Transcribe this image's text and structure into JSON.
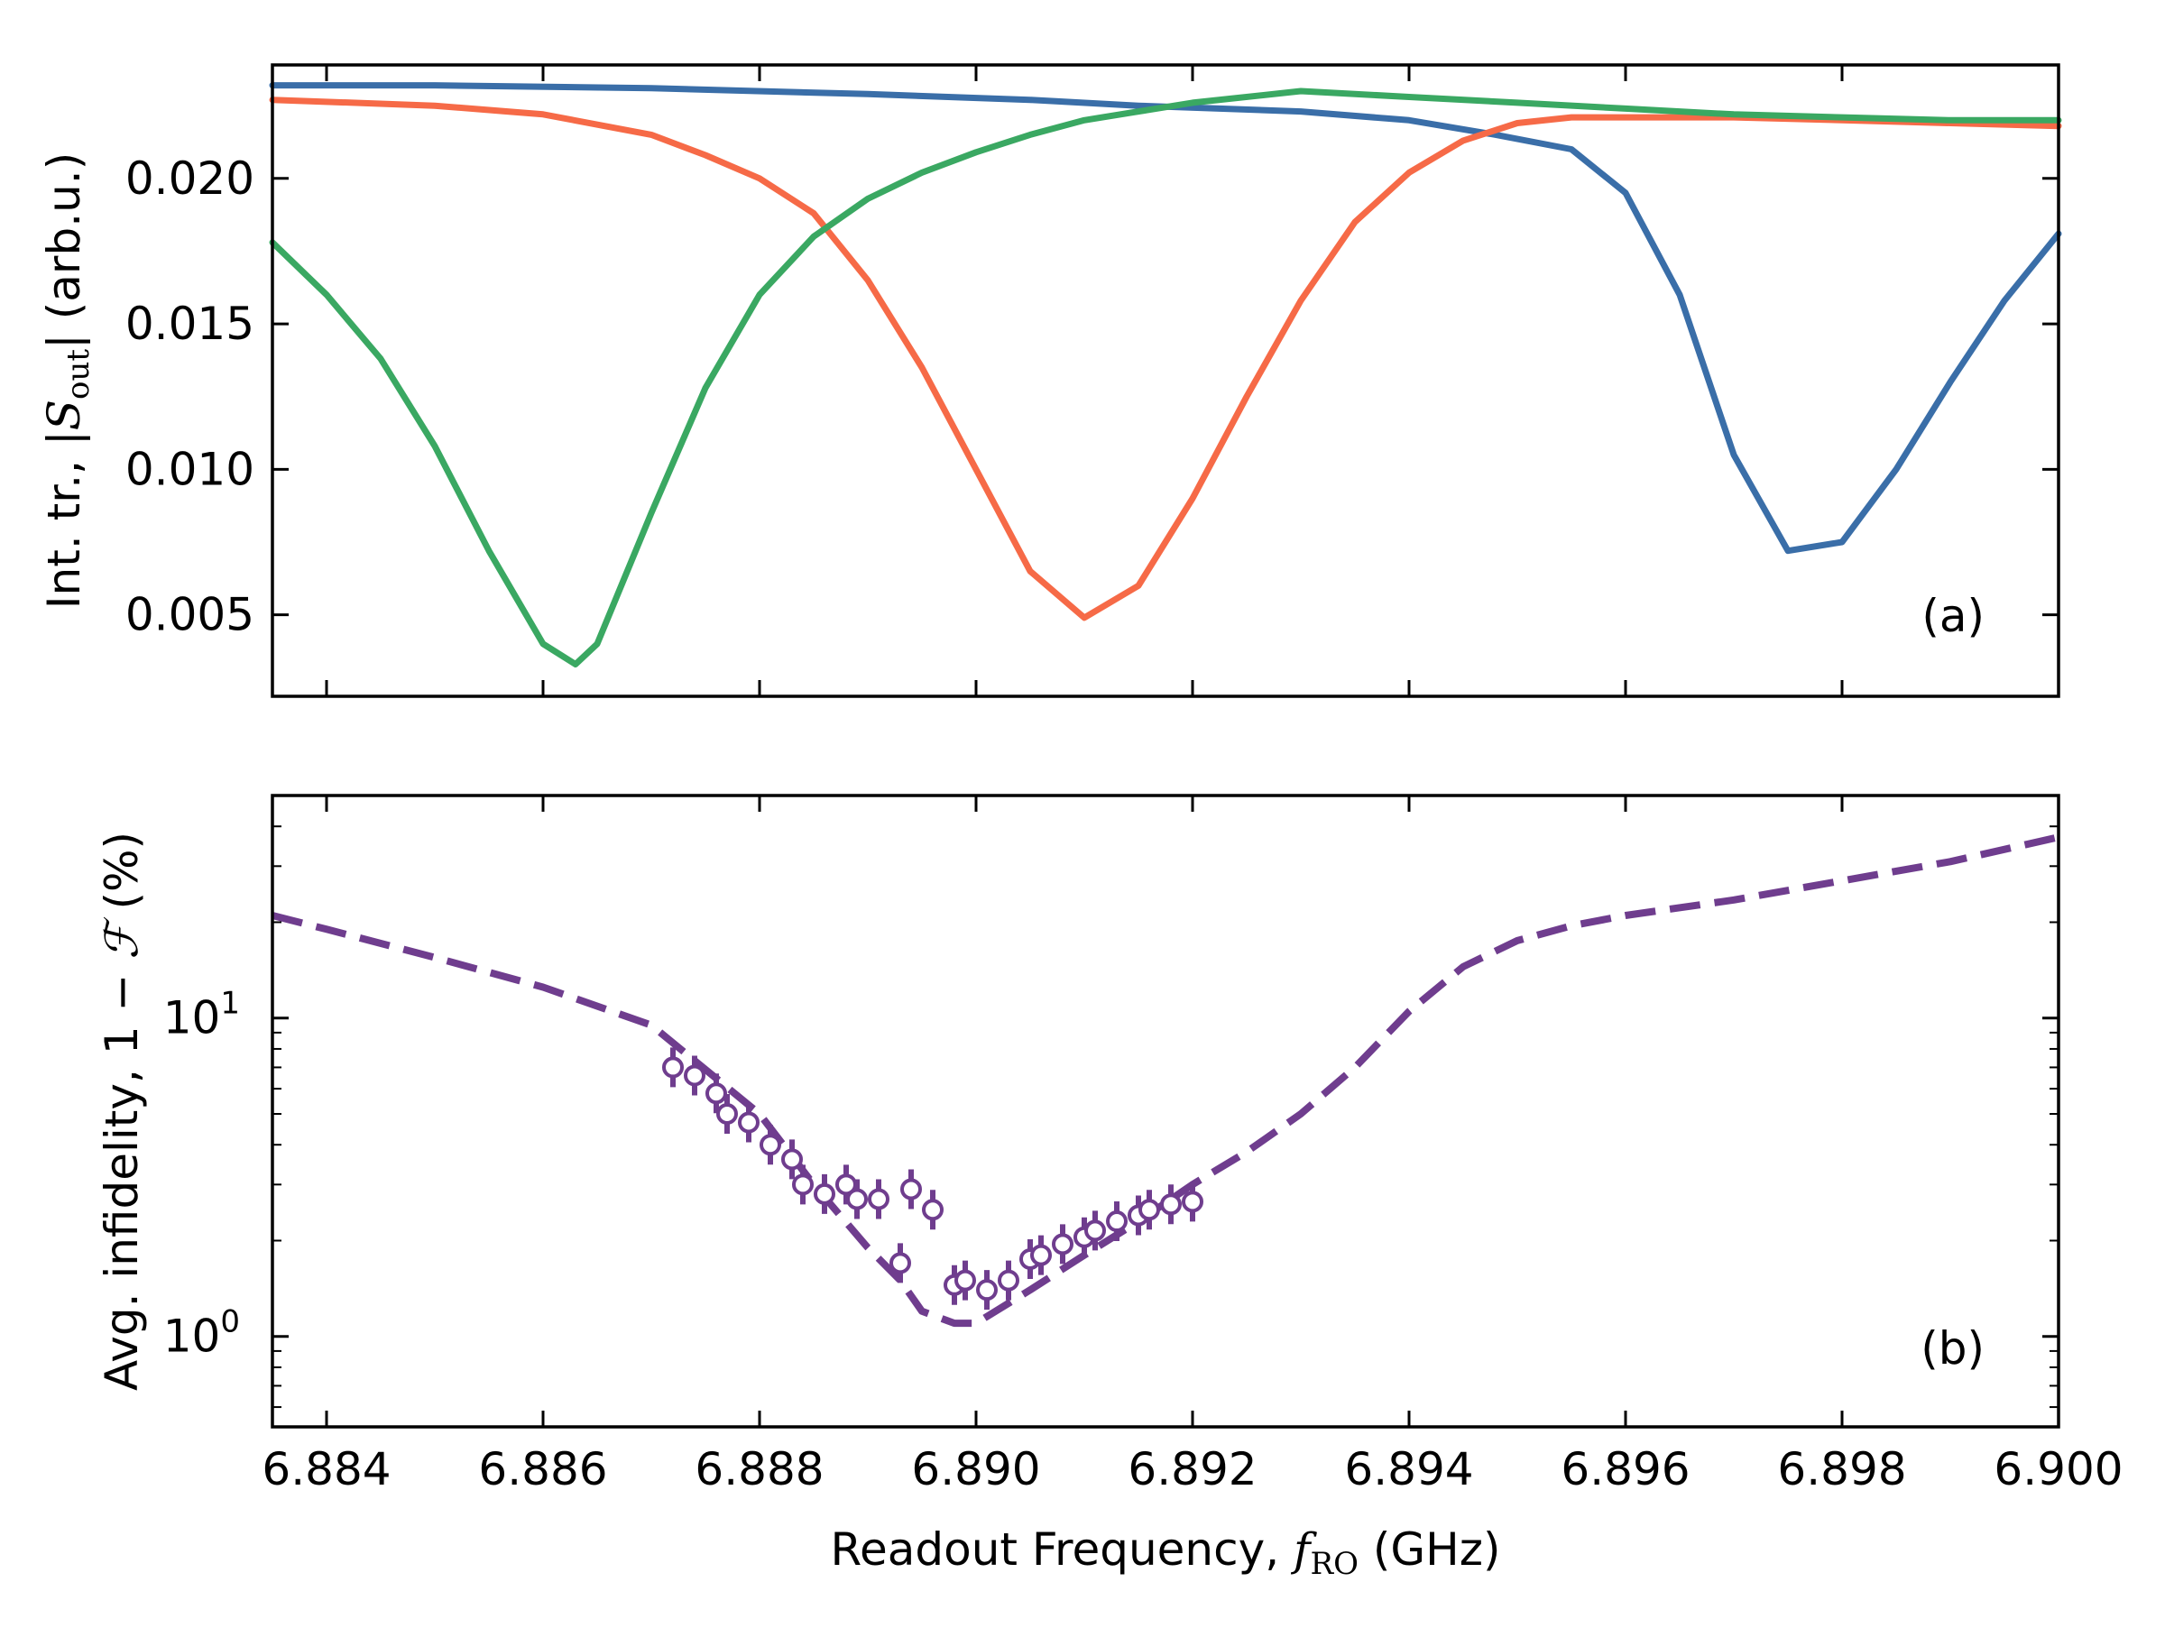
{
  "chart_data": [
    {
      "panel": "(a)",
      "type": "line",
      "xlabel": "",
      "ylabel": "Int. tr., |S_out| (arb.u.)",
      "ylabel_parts": {
        "prefix": "Int. tr., |",
        "symbol": "S",
        "subscript": "out",
        "suffix": "| (arb.u.)"
      },
      "xlim": [
        6.8835,
        6.9
      ],
      "ylim": [
        0.0022,
        0.0239
      ],
      "yticks": [
        0.005,
        0.01,
        0.015,
        0.02
      ],
      "ytick_labels": [
        "0.005",
        "0.010",
        "0.015",
        "0.020"
      ],
      "grid": false,
      "series": [
        {
          "color": "#3a6ea8",
          "x": [
            6.8835,
            6.885,
            6.887,
            6.889,
            6.8905,
            6.8915,
            6.893,
            6.894,
            6.8948,
            6.8955,
            6.896,
            6.8965,
            6.897,
            6.8975,
            6.898,
            6.8985,
            6.899,
            6.8995,
            6.9
          ],
          "y": [
            0.0232,
            0.0232,
            0.0231,
            0.0229,
            0.0227,
            0.0225,
            0.0223,
            0.022,
            0.0215,
            0.021,
            0.0195,
            0.016,
            0.0105,
            0.0072,
            0.0075,
            0.01,
            0.013,
            0.0158,
            0.0181
          ]
        },
        {
          "color": "#f66a47",
          "x": [
            6.8835,
            6.885,
            6.886,
            6.887,
            6.8875,
            6.888,
            6.8885,
            6.889,
            6.8895,
            6.89,
            6.8905,
            6.891,
            6.8915,
            6.892,
            6.8925,
            6.893,
            6.8935,
            6.894,
            6.8945,
            6.895,
            6.8955,
            6.896,
            6.897,
            6.898,
            6.899,
            6.9
          ],
          "y": [
            0.0227,
            0.0225,
            0.0222,
            0.0215,
            0.0208,
            0.02,
            0.0188,
            0.0165,
            0.0135,
            0.01,
            0.0065,
            0.0049,
            0.006,
            0.009,
            0.0125,
            0.0158,
            0.0185,
            0.0202,
            0.0213,
            0.0219,
            0.0221,
            0.0221,
            0.0221,
            0.022,
            0.0219,
            0.0218
          ]
        },
        {
          "color": "#3aa862",
          "x": [
            6.8835,
            6.884,
            6.8845,
            6.885,
            6.8855,
            6.886,
            6.8863,
            6.8865,
            6.887,
            6.8875,
            6.888,
            6.8885,
            6.889,
            6.8895,
            6.89,
            6.8905,
            6.891,
            6.892,
            6.893,
            6.894,
            6.895,
            6.896,
            6.897,
            6.898,
            6.899,
            6.9
          ],
          "y": [
            0.0178,
            0.016,
            0.0138,
            0.0108,
            0.0072,
            0.004,
            0.0033,
            0.004,
            0.0085,
            0.0128,
            0.016,
            0.018,
            0.0193,
            0.0202,
            0.0209,
            0.0215,
            0.022,
            0.0226,
            0.023,
            0.0228,
            0.0226,
            0.0224,
            0.0222,
            0.0221,
            0.022,
            0.022
          ]
        }
      ]
    },
    {
      "panel": "(b)",
      "type": "scatter",
      "xlabel": "Readout Frequency, f_RO (GHz)",
      "xlabel_parts": {
        "prefix": "Readout Frequency, ",
        "symbol": "f",
        "subscript": "RO",
        "suffix": " (GHz)"
      },
      "ylabel": "Avg. infidelity, 1 − F (%)",
      "ylabel_parts": {
        "prefix": "Avg. infidelity, 1 − ",
        "symbol": "ℱ",
        "suffix": " (%)"
      },
      "xlim": [
        6.8835,
        6.9
      ],
      "ylim": [
        0.52,
        50
      ],
      "yscale": "log",
      "yticks": [
        1,
        10
      ],
      "ytick_labels": [
        {
          "base": "10",
          "exp": "0"
        },
        {
          "base": "10",
          "exp": "1"
        }
      ],
      "xticks": [
        6.884,
        6.886,
        6.888,
        6.89,
        6.892,
        6.894,
        6.896,
        6.898,
        6.9
      ],
      "xtick_labels": [
        "6.884",
        "6.886",
        "6.888",
        "6.890",
        "6.892",
        "6.894",
        "6.896",
        "6.898",
        "6.900"
      ],
      "grid": false,
      "line": {
        "style": "dashed",
        "color": "#6f3d8e",
        "x": [
          6.8835,
          6.884,
          6.885,
          6.886,
          6.887,
          6.888,
          6.8885,
          6.889,
          6.8893,
          6.8895,
          6.8898,
          6.89,
          6.8905,
          6.891,
          6.8915,
          6.892,
          6.8925,
          6.893,
          6.8935,
          6.894,
          6.8945,
          6.895,
          6.8955,
          6.896,
          6.897,
          6.898,
          6.899,
          6.9
        ],
        "y": [
          21,
          19,
          15.5,
          12.5,
          9.5,
          5,
          3,
          1.9,
          1.5,
          1.2,
          1.1,
          1.1,
          1.4,
          1.8,
          2.3,
          3,
          3.8,
          5,
          7,
          10.5,
          14.5,
          17.5,
          19.5,
          21,
          23.5,
          27,
          31,
          37
        ]
      },
      "points": {
        "color": "#6f3d8e",
        "x": [
          6.8872,
          6.8874,
          6.8876,
          6.8877,
          6.8879,
          6.8881,
          6.8883,
          6.8884,
          6.8886,
          6.8888,
          6.8889,
          6.8891,
          6.8893,
          6.8894,
          6.8896,
          6.8898,
          6.8899,
          6.8901,
          6.8903,
          6.8905,
          6.8906,
          6.8908,
          6.891,
          6.8911,
          6.8913,
          6.8915,
          6.8916,
          6.8918,
          6.892
        ],
        "y": [
          7.0,
          6.6,
          5.8,
          5.0,
          4.7,
          4.0,
          3.6,
          3.0,
          2.8,
          3.0,
          2.7,
          2.7,
          1.7,
          2.9,
          2.5,
          1.45,
          1.5,
          1.4,
          1.5,
          1.75,
          1.8,
          1.95,
          2.05,
          2.15,
          2.3,
          2.4,
          2.5,
          2.6,
          2.65
        ]
      }
    }
  ]
}
